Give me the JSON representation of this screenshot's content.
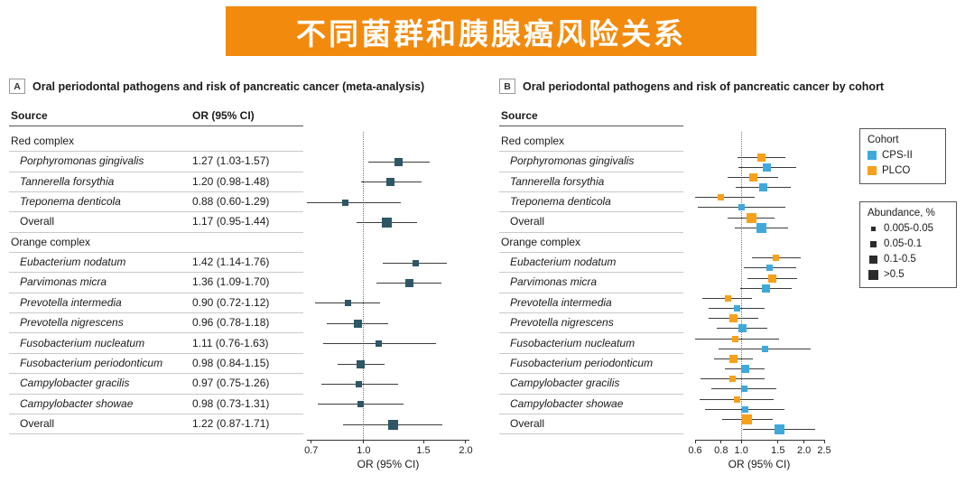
{
  "banner": {
    "title": "不同菌群和胰腺癌风险关系",
    "bg": "#F28A0D",
    "text_color": "#FFFFFF"
  },
  "panelA": {
    "tag": "A",
    "title": "Oral periodontal pathogens and risk of pancreatic cancer (meta-analysis)",
    "col_source": "Source",
    "col_or": "OR (95% CI)",
    "xlabel": "OR (95% CI)"
  },
  "panelB": {
    "tag": "B",
    "title": "Oral periodontal pathogens and risk of pancreatic cancer by cohort",
    "col_source": "Source",
    "xlabel": "OR (95% CI)"
  },
  "legend": {
    "cohort_title": "Cohort",
    "cohorts": [
      {
        "label": "CPS-II",
        "color": "#3FA9DC"
      },
      {
        "label": "PLCO",
        "color": "#F7A11A"
      }
    ],
    "abundance_title": "Abundance, %",
    "abundance_color": "#2B2B2B",
    "abundance": [
      {
        "label": "0.005-0.05",
        "size": 1
      },
      {
        "label": "0.05-0.1",
        "size": 2
      },
      {
        "label": "0.1-0.5",
        "size": 3
      },
      {
        "label": ">0.5",
        "size": 4
      }
    ]
  },
  "chart_data": [
    {
      "type": "forest",
      "panel": "A",
      "title": "Oral periodontal pathogens and risk of pancreatic cancer (meta-analysis)",
      "xlabel": "OR (95% CI)",
      "x_scale": "log",
      "x_domain": [
        0.68,
        2.05
      ],
      "x_ticks": [
        0.7,
        1.0,
        1.5,
        2.0
      ],
      "ref_line": 1.0,
      "marker_color": "#2E5665",
      "rows": [
        {
          "label": "Red complex",
          "group": true
        },
        {
          "label": "Porphyromonas gingivalis",
          "italic": true,
          "or_text": "1.27 (1.03-1.57)",
          "or": 1.27,
          "lo": 1.03,
          "hi": 1.57,
          "size": 3
        },
        {
          "label": "Tannerella forsythia",
          "italic": true,
          "or_text": "1.20 (0.98-1.48)",
          "or": 1.2,
          "lo": 0.98,
          "hi": 1.48,
          "size": 3
        },
        {
          "label": "Treponema denticola",
          "italic": true,
          "or_text": "0.88 (0.60-1.29)",
          "or": 0.88,
          "lo": 0.6,
          "hi": 1.29,
          "size": 2
        },
        {
          "label": "Overall",
          "or_text": "1.17 (0.95-1.44)",
          "or": 1.17,
          "lo": 0.95,
          "hi": 1.44,
          "size": 4
        },
        {
          "label": "Orange complex",
          "group": true
        },
        {
          "label": "Eubacterium nodatum",
          "italic": true,
          "or_text": "1.42 (1.14-1.76)",
          "or": 1.42,
          "lo": 1.14,
          "hi": 1.76,
          "size": 2
        },
        {
          "label": "Parvimonas micra",
          "italic": true,
          "or_text": "1.36 (1.09-1.70)",
          "or": 1.36,
          "lo": 1.09,
          "hi": 1.7,
          "size": 3
        },
        {
          "label": "Prevotella intermedia",
          "italic": true,
          "or_text": "0.90 (0.72-1.12)",
          "or": 0.9,
          "lo": 0.72,
          "hi": 1.12,
          "size": 2
        },
        {
          "label": "Prevotella nigrescens",
          "italic": true,
          "or_text": "0.96 (0.78-1.18)",
          "or": 0.96,
          "lo": 0.78,
          "hi": 1.18,
          "size": 3
        },
        {
          "label": "Fusobacterium nucleatum",
          "italic": true,
          "or_text": "1.11 (0.76-1.63)",
          "or": 1.11,
          "lo": 0.76,
          "hi": 1.63,
          "size": 2
        },
        {
          "label": "Fusobacterium periodonticum",
          "italic": true,
          "or_text": "0.98 (0.84-1.15)",
          "or": 0.98,
          "lo": 0.84,
          "hi": 1.15,
          "size": 3
        },
        {
          "label": "Campylobacter gracilis",
          "italic": true,
          "or_text": "0.97 (0.75-1.26)",
          "or": 0.97,
          "lo": 0.75,
          "hi": 1.26,
          "size": 2
        },
        {
          "label": "Campylobacter showae",
          "italic": true,
          "or_text": "0.98 (0.73-1.31)",
          "or": 0.98,
          "lo": 0.73,
          "hi": 1.31,
          "size": 2
        },
        {
          "label": "Overall",
          "or_text": "1.22 (0.87-1.71)",
          "or": 1.22,
          "lo": 0.87,
          "hi": 1.71,
          "size": 4
        }
      ]
    },
    {
      "type": "forest",
      "panel": "B",
      "title": "Oral periodontal pathogens and risk of pancreatic cancer by cohort",
      "xlabel": "OR (95% CI)",
      "x_scale": "log",
      "x_domain": [
        0.6,
        2.5
      ],
      "x_ticks": [
        0.6,
        0.8,
        1.0,
        1.5,
        2.0,
        2.5
      ],
      "ref_line": 1.0,
      "rows": [
        {
          "label": "Red complex",
          "group": true
        },
        {
          "label": "Porphyromonas gingivalis",
          "italic": true,
          "series": [
            {
              "cohort": "PLCO",
              "or": 1.25,
              "lo": 0.96,
              "hi": 1.62,
              "size": 3
            },
            {
              "cohort": "CPS-II",
              "or": 1.33,
              "lo": 0.97,
              "hi": 1.83,
              "size": 3
            }
          ]
        },
        {
          "label": "Tannerella forsythia",
          "italic": true,
          "series": [
            {
              "cohort": "PLCO",
              "or": 1.14,
              "lo": 0.86,
              "hi": 1.51,
              "size": 3
            },
            {
              "cohort": "CPS-II",
              "or": 1.27,
              "lo": 0.94,
              "hi": 1.72,
              "size": 3
            }
          ]
        },
        {
          "label": "Treponema denticola",
          "italic": true,
          "series": [
            {
              "cohort": "PLCO",
              "or": 0.8,
              "lo": 0.55,
              "hi": 1.16,
              "size": 2
            },
            {
              "cohort": "CPS-II",
              "or": 1.0,
              "lo": 0.62,
              "hi": 1.62,
              "size": 2
            }
          ]
        },
        {
          "label": "Overall",
          "series": [
            {
              "cohort": "PLCO",
              "or": 1.12,
              "lo": 0.86,
              "hi": 1.45,
              "size": 4
            },
            {
              "cohort": "CPS-II",
              "or": 1.25,
              "lo": 0.93,
              "hi": 1.67,
              "size": 4
            }
          ]
        },
        {
          "label": "Orange complex",
          "group": true
        },
        {
          "label": "Eubacterium nodatum",
          "italic": true,
          "series": [
            {
              "cohort": "PLCO",
              "or": 1.47,
              "lo": 1.12,
              "hi": 1.93,
              "size": 2
            },
            {
              "cohort": "CPS-II",
              "or": 1.37,
              "lo": 1.03,
              "hi": 1.83,
              "size": 2
            }
          ]
        },
        {
          "label": "Parvimonas micra",
          "italic": true,
          "series": [
            {
              "cohort": "PLCO",
              "or": 1.41,
              "lo": 1.07,
              "hi": 1.85,
              "size": 3
            },
            {
              "cohort": "CPS-II",
              "or": 1.31,
              "lo": 0.99,
              "hi": 1.74,
              "size": 3
            }
          ]
        },
        {
          "label": "Prevotella intermedia",
          "italic": true,
          "series": [
            {
              "cohort": "PLCO",
              "or": 0.86,
              "lo": 0.65,
              "hi": 1.13,
              "size": 2
            },
            {
              "cohort": "CPS-II",
              "or": 0.95,
              "lo": 0.7,
              "hi": 1.29,
              "size": 2
            }
          ]
        },
        {
          "label": "Prevotella nigrescens",
          "italic": true,
          "series": [
            {
              "cohort": "PLCO",
              "or": 0.92,
              "lo": 0.7,
              "hi": 1.21,
              "size": 3
            },
            {
              "cohort": "CPS-II",
              "or": 1.01,
              "lo": 0.76,
              "hi": 1.34,
              "size": 3
            }
          ]
        },
        {
          "label": "Fusobacterium nucleatum",
          "italic": true,
          "series": [
            {
              "cohort": "PLCO",
              "or": 0.94,
              "lo": 0.58,
              "hi": 1.52,
              "size": 2
            },
            {
              "cohort": "CPS-II",
              "or": 1.3,
              "lo": 0.78,
              "hi": 2.16,
              "size": 2
            }
          ]
        },
        {
          "label": "Fusobacterium periodonticum",
          "italic": true,
          "series": [
            {
              "cohort": "PLCO",
              "or": 0.92,
              "lo": 0.74,
              "hi": 1.14,
              "size": 3
            },
            {
              "cohort": "CPS-II",
              "or": 1.04,
              "lo": 0.83,
              "hi": 1.3,
              "size": 3
            }
          ]
        },
        {
          "label": "Campylobacter gracilis",
          "italic": true,
          "series": [
            {
              "cohort": "PLCO",
              "or": 0.91,
              "lo": 0.64,
              "hi": 1.29,
              "size": 2
            },
            {
              "cohort": "CPS-II",
              "or": 1.03,
              "lo": 0.72,
              "hi": 1.47,
              "size": 2
            }
          ]
        },
        {
          "label": "Campylobacter showae",
          "italic": true,
          "series": [
            {
              "cohort": "PLCO",
              "or": 0.95,
              "lo": 0.63,
              "hi": 1.43,
              "size": 2
            },
            {
              "cohort": "CPS-II",
              "or": 1.04,
              "lo": 0.67,
              "hi": 1.61,
              "size": 2
            }
          ]
        },
        {
          "label": "Overall",
          "series": [
            {
              "cohort": "PLCO",
              "or": 1.07,
              "lo": 0.81,
              "hi": 1.41,
              "size": 4
            },
            {
              "cohort": "CPS-II",
              "or": 1.52,
              "lo": 1.02,
              "hi": 2.26,
              "size": 4
            }
          ]
        }
      ]
    }
  ]
}
